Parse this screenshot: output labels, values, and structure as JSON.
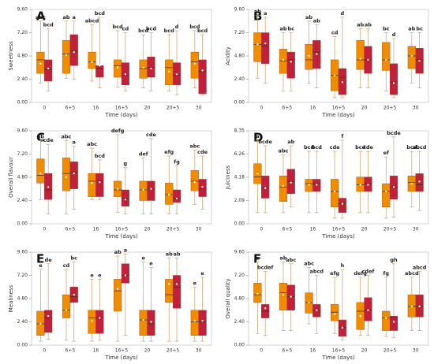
{
  "chart_data": [
    {
      "type": "box",
      "panel": "A",
      "y_label": "Sweetness",
      "x_label": "Time (days)",
      "categories": [
        "0",
        "6+5",
        "16",
        "16+5",
        "20",
        "20+5",
        "30"
      ],
      "ylim": [
        0,
        9.6
      ],
      "yticks": [
        {
          "value": 0,
          "label": "0.00"
        },
        {
          "value": 2.4,
          "label": "2.40"
        },
        {
          "value": 4.8,
          "label": "4.80"
        },
        {
          "value": 7.2,
          "label": "7.20"
        },
        {
          "value": 9.6,
          "label": "9.60"
        }
      ],
      "series": [
        {
          "color": "#f08c00",
          "values": [
            [
              2,
              3,
              4.4,
              5.2,
              8.4
            ],
            [
              2.5,
              3,
              5,
              6.4,
              8.4
            ],
            [
              2.2,
              3.5,
              4.2,
              5.2,
              8
            ],
            [
              1.6,
              2.6,
              3.8,
              4.4,
              7.4
            ],
            [
              1.5,
              2.5,
              3.5,
              4.4,
              7
            ],
            [
              1.2,
              1.8,
              3.6,
              4.4,
              7
            ],
            [
              1.5,
              2.5,
              4.2,
              5.2,
              7.4
            ]
          ],
          "means": [
            4,
            4.9,
            4.2,
            3.6,
            3.6,
            3.2,
            4
          ],
          "letters": [
            "abc",
            "ab",
            "abcd",
            "bcd",
            "bcd",
            "bcd",
            "bcd"
          ]
        },
        {
          "color": "#c0203a",
          "values": [
            [
              1.2,
              2.2,
              3.4,
              4.4,
              7.6
            ],
            [
              2.4,
              3.8,
              5.3,
              7,
              8.4
            ],
            [
              1.5,
              2.6,
              3.5,
              3.8,
              8.8
            ],
            [
              1.2,
              1.8,
              2.8,
              4.1,
              7.2
            ],
            [
              1.2,
              2.6,
              3.6,
              4.7,
              7.2
            ],
            [
              0.8,
              1.8,
              2.8,
              4.1,
              7.4
            ],
            [
              0.8,
              0.9,
              3.2,
              4.4,
              7
            ]
          ],
          "means": [
            3.5,
            5.2,
            3.8,
            2.9,
            3.5,
            2.9,
            3.3
          ],
          "letters": [
            "bcd",
            "a",
            "bcd",
            "cd",
            "bcd",
            "d",
            "bcd"
          ]
        }
      ]
    },
    {
      "type": "box",
      "panel": "B",
      "y_label": "Acidity",
      "x_label": "Time (days)",
      "categories": [
        "0",
        "6+5",
        "16",
        "16+5",
        "20",
        "20+5",
        "30"
      ],
      "ylim": [
        0,
        9.6
      ],
      "yticks": [
        {
          "value": 0,
          "label": "0.00"
        },
        {
          "value": 2.4,
          "label": "2.40"
        },
        {
          "value": 4.8,
          "label": "4.80"
        },
        {
          "value": 7.2,
          "label": "7.20"
        },
        {
          "value": 9.6,
          "label": "9.60"
        }
      ],
      "series": [
        {
          "color": "#f08c00",
          "values": [
            [
              2.5,
              4.2,
              6,
              7.2,
              9
            ],
            [
              1.2,
              3,
              4.3,
              5.5,
              7.2
            ],
            [
              2,
              3.4,
              4.4,
              6,
              8.4
            ],
            [
              0.5,
              1.2,
              2.8,
              4.4,
              6.8
            ],
            [
              1.5,
              3.4,
              4.4,
              6.4,
              7.6
            ],
            [
              1.2,
              3.3,
              4.4,
              6.2,
              7.2
            ],
            [
              2,
              3.5,
              4.8,
              5.8,
              7.2
            ]
          ],
          "means": [
            6,
            4.4,
            4.8,
            2.8,
            4.5,
            4.4,
            4.8
          ],
          "letters": [
            "ab",
            "ab",
            "ab",
            "cd",
            "ab",
            "bc",
            "ab"
          ]
        },
        {
          "color": "#c0203a",
          "values": [
            [
              2,
              4,
              5.8,
              7.2,
              8.8
            ],
            [
              1.2,
              2.5,
              4.4,
              5.2,
              7.2
            ],
            [
              1.5,
              3.5,
              5.2,
              6.4,
              8
            ],
            [
              0.5,
              0.8,
              2.6,
              3.5,
              8.8
            ],
            [
              1.5,
              3,
              4.4,
              5.8,
              7.6
            ],
            [
              0.5,
              0.8,
              2.1,
              4,
              6.6
            ],
            [
              1.5,
              3,
              4.4,
              5.6,
              7.2
            ]
          ],
          "means": [
            6.1,
            4.2,
            5,
            2.1,
            4.4,
            2,
            4.3
          ],
          "letters": [
            "a",
            "bc",
            "ab",
            "d",
            "ab",
            "d",
            "bc"
          ]
        }
      ]
    },
    {
      "type": "box",
      "panel": "C",
      "y_label": "Overall flavour",
      "x_label": "Time (days)",
      "categories": [
        "0",
        "6+5",
        "16",
        "16+5",
        "20",
        "20+5",
        "30"
      ],
      "ylim": [
        0,
        9.6
      ],
      "yticks": [
        {
          "value": 0,
          "label": "0.00"
        },
        {
          "value": 2.4,
          "label": "2.40"
        },
        {
          "value": 4.8,
          "label": "4.80"
        },
        {
          "value": 7.2,
          "label": "7.20"
        },
        {
          "value": 9.6,
          "label": "9.60"
        }
      ],
      "series": [
        {
          "color": "#f08c00",
          "values": [
            [
              2.5,
              4.2,
              5,
              6.7,
              8.6
            ],
            [
              1,
              3.4,
              5.2,
              6.8,
              8.6
            ],
            [
              2.5,
              2.8,
              4.4,
              5.2,
              7.8
            ],
            [
              1.2,
              2.8,
              3.5,
              4.4,
              9.2
            ],
            [
              1,
              2.4,
              3.5,
              4.4,
              6.8
            ],
            [
              1,
              2,
              3,
              4.2,
              7
            ],
            [
              2,
              3.4,
              4.4,
              5.5,
              7.6
            ]
          ],
          "means": [
            5.2,
            4.8,
            4.2,
            3.6,
            3.5,
            3,
            4.3
          ],
          "letters": [
            "ab",
            "abc",
            "abc",
            "defg",
            "def",
            "efg",
            "abc"
          ]
        },
        {
          "color": "#c0203a",
          "values": [
            [
              1,
              2.5,
              3.5,
              5.2,
              8.2
            ],
            [
              1.5,
              3.6,
              5.3,
              6.4,
              8
            ],
            [
              2.5,
              2.8,
              4.4,
              5.2,
              6.6
            ],
            [
              1,
              1.8,
              2.6,
              3.5,
              5.8
            ],
            [
              1,
              2.4,
              3.6,
              4.4,
              8.8
            ],
            [
              1,
              2.2,
              2.6,
              3.5,
              6
            ],
            [
              1.5,
              2.8,
              3.6,
              4.6,
              7
            ]
          ],
          "means": [
            3.8,
            5.2,
            4.3,
            2.5,
            3.6,
            2.6,
            3.8
          ],
          "letters": [
            "cde",
            "a",
            "bcd",
            "g",
            "cde",
            "fg",
            "cde"
          ]
        }
      ]
    },
    {
      "type": "box",
      "panel": "D",
      "y_label": "Juiciness",
      "x_label": "Time (days)",
      "categories": [
        "0",
        "6+5",
        "16",
        "16+5",
        "20",
        "20+5",
        "30"
      ],
      "ylim": [
        0,
        8.35
      ],
      "yticks": [
        {
          "value": 0,
          "label": "0.00"
        },
        {
          "value": 2.09,
          "label": "2.09"
        },
        {
          "value": 4.18,
          "label": "4.18"
        },
        {
          "value": 6.26,
          "label": "6.26"
        },
        {
          "value": 8.35,
          "label": "8.35"
        }
      ],
      "series": [
        {
          "color": "#f08c00",
          "values": [
            [
              1,
              3.6,
              4.2,
              5.4,
              7.5
            ],
            [
              1,
              2,
              3.3,
              4.3,
              6.2
            ],
            [
              1,
              2.9,
              3.6,
              4,
              6.5
            ],
            [
              0.5,
              1.5,
              2.9,
              4,
              6.5
            ],
            [
              1,
              2.9,
              3.5,
              4.2,
              6.5
            ],
            [
              0.5,
              1.5,
              2.9,
              3.6,
              6
            ],
            [
              1.5,
              2.9,
              3.7,
              4.3,
              6.5
            ]
          ],
          "means": [
            4.5,
            3.4,
            3.5,
            2.9,
            3.5,
            2.9,
            3.6
          ],
          "letters": [
            "a",
            "abc",
            "bcd",
            "cde",
            "bcd",
            "ef",
            "bcd"
          ]
        },
        {
          "color": "#c0203a",
          "values": [
            [
              1,
              2.3,
              3.2,
              4.3,
              7
            ],
            [
              1.5,
              2.7,
              3.8,
              4.9,
              7
            ],
            [
              1,
              2.9,
              3.6,
              4,
              6.5
            ],
            [
              0.5,
              1,
              1.8,
              2.3,
              7.5
            ],
            [
              1,
              2.9,
              3.6,
              4.2,
              6.5
            ],
            [
              0.6,
              2.2,
              3.3,
              4.3,
              7.8
            ],
            [
              1.2,
              2.9,
              3.5,
              4.5,
              6.5
            ]
          ],
          "means": [
            3.2,
            3.7,
            3.5,
            1.8,
            3.5,
            3.3,
            3.8
          ],
          "letters": [
            "bcde",
            "ab",
            "bcd",
            "f",
            "cde",
            "bcde",
            "abcd"
          ]
        }
      ]
    },
    {
      "type": "box",
      "panel": "E",
      "y_label": "Mealiness",
      "x_label": "Time (days)",
      "categories": [
        "0",
        "6+5",
        "16",
        "16+5",
        "20",
        "20+5",
        "30"
      ],
      "ylim": [
        0,
        9.6
      ],
      "yticks": [
        {
          "value": 0,
          "label": "0.00"
        },
        {
          "value": 2.4,
          "label": "2.40"
        },
        {
          "value": 4.8,
          "label": "4.80"
        },
        {
          "value": 7.2,
          "label": "7.20"
        },
        {
          "value": 9.6,
          "label": "9.60"
        }
      ],
      "series": [
        {
          "color": "#f08c00",
          "values": [
            [
              0.4,
              1,
              2.2,
              3.5,
              7.8
            ],
            [
              0.5,
              2.8,
              3.6,
              5.2,
              7.8
            ],
            [
              0.4,
              1.2,
              2.8,
              3.6,
              6.8
            ],
            [
              0.4,
              3.5,
              5.6,
              6.8,
              9.2
            ],
            [
              0.4,
              1,
              2.6,
              3.6,
              8.6
            ],
            [
              0.4,
              4.4,
              5.2,
              6.8,
              9
            ],
            [
              0.4,
              1,
              2.4,
              3.6,
              6
            ]
          ],
          "means": [
            2.2,
            3.6,
            2.5,
            5.8,
            2.6,
            6.3,
            2.5
          ],
          "letters": [
            "e",
            "cd",
            "e",
            "ab",
            "e",
            "ab",
            "e"
          ]
        },
        {
          "color": "#c0203a",
          "values": [
            [
              0.6,
              1.3,
              2.8,
              3.6,
              8.4
            ],
            [
              0.4,
              4.4,
              5,
              6,
              8.6
            ],
            [
              0.5,
              1.2,
              2.8,
              3.6,
              6.8
            ],
            [
              1,
              6.4,
              7.2,
              8.4,
              9.4
            ],
            [
              0.4,
              1,
              2.2,
              3.6,
              8
            ],
            [
              0.4,
              3.8,
              6,
              7.2,
              9
            ],
            [
              0.4,
              1,
              2.4,
              3.6,
              7
            ]
          ],
          "means": [
            3,
            5.2,
            2.8,
            7.2,
            2.4,
            6.3,
            2.5
          ],
          "letters": [
            "de",
            "bc",
            "e",
            "a",
            "e",
            "ab",
            "e"
          ]
        }
      ]
    },
    {
      "type": "box",
      "panel": "F",
      "y_label": "Overall quality",
      "x_label": "Time (days)",
      "categories": [
        "0",
        "6+5",
        "16",
        "16+5",
        "20",
        "20+5",
        "30"
      ],
      "ylim": [
        0,
        9.6
      ],
      "yticks": [
        {
          "value": 0,
          "label": "0.00"
        },
        {
          "value": 2.4,
          "label": "2.40"
        },
        {
          "value": 4.8,
          "label": "4.80"
        },
        {
          "value": 7.2,
          "label": "7.20"
        },
        {
          "value": 9.6,
          "label": "9.60"
        }
      ],
      "series": [
        {
          "color": "#f08c00",
          "values": [
            [
              1.2,
              4.4,
              5.2,
              6.4,
              8.6
            ],
            [
              1.5,
              3.6,
              5.4,
              6.4,
              8.6
            ],
            [
              2.2,
              3.3,
              4.4,
              5.4,
              8
            ],
            [
              1.2,
              2.5,
              3.4,
              4.2,
              7
            ],
            [
              1,
              1.6,
              3.5,
              4.4,
              7
            ],
            [
              0.9,
              1.5,
              2.8,
              3.5,
              7
            ],
            [
              1.5,
              2.9,
              4,
              5.2,
              7
            ]
          ],
          "means": [
            5.3,
            5.2,
            4.4,
            3.2,
            3,
            2.8,
            4
          ],
          "letters": [
            "a",
            "ab",
            "abc",
            "efg",
            "defg",
            "fg",
            "abcd"
          ]
        },
        {
          "color": "#c0203a",
          "values": [
            [
              1,
              2.8,
              3.5,
              4.2,
              7.6
            ],
            [
              1.5,
              3.6,
              5,
              6.2,
              8.4
            ],
            [
              1.2,
              2.9,
              3.6,
              4.2,
              7.2
            ],
            [
              0.5,
              0.9,
              1.8,
              2.6,
              7.8
            ],
            [
              1,
              2.5,
              3.6,
              4.9,
              7.2
            ],
            [
              0.8,
              1.5,
              2.8,
              3,
              8.4
            ],
            [
              1.5,
              2.9,
              4,
              5.2,
              7.6
            ]
          ],
          "means": [
            3.8,
            5,
            3.6,
            1.8,
            3.6,
            2.4,
            4
          ],
          "letters": [
            "bcdef",
            "abc",
            "abcd",
            "h",
            "cdef",
            "gh",
            "abcd"
          ]
        }
      ]
    }
  ]
}
